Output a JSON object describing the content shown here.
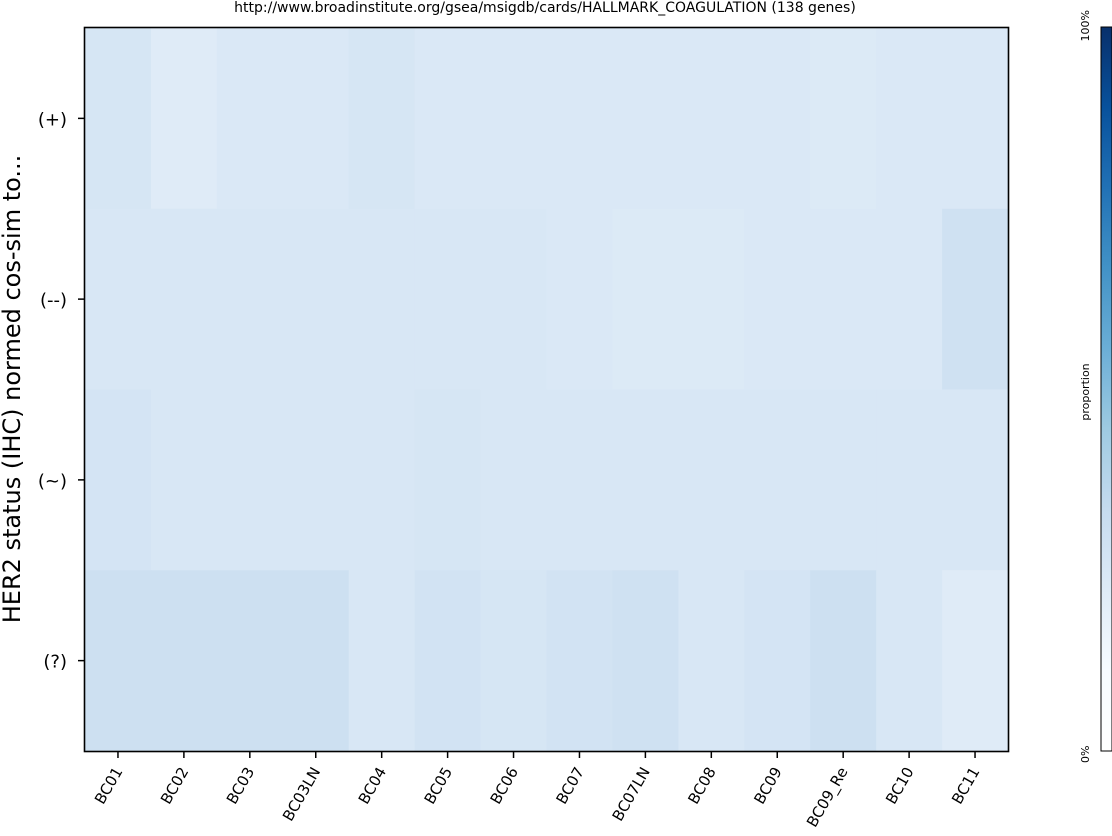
{
  "chart_data": {
    "type": "heatmap",
    "title": "http://www.broadinstitute.org/gsea/msigdb/cards/HALLMARK_COAGULATION (138 genes)",
    "ylabel": "HER2 status (IHC) normed cos-sim to...",
    "xlabel": "",
    "x_categories": [
      "BC01",
      "BC02",
      "BC03",
      "BC03LN",
      "BC04",
      "BC05",
      "BC06",
      "BC07",
      "BC07LN",
      "BC08",
      "BC09",
      "BC09_Re",
      "BC10",
      "BC11"
    ],
    "y_categories": [
      "(+)",
      "(--)",
      "(~)",
      "(?)"
    ],
    "values": [
      [
        0.26,
        0.22,
        0.24,
        0.24,
        0.26,
        0.24,
        0.24,
        0.24,
        0.24,
        0.24,
        0.24,
        0.23,
        0.24,
        0.24
      ],
      [
        0.25,
        0.25,
        0.25,
        0.25,
        0.25,
        0.25,
        0.25,
        0.24,
        0.23,
        0.23,
        0.24,
        0.24,
        0.24,
        0.29
      ],
      [
        0.27,
        0.25,
        0.25,
        0.25,
        0.25,
        0.26,
        0.25,
        0.25,
        0.25,
        0.25,
        0.25,
        0.25,
        0.25,
        0.25
      ],
      [
        0.3,
        0.3,
        0.3,
        0.3,
        0.25,
        0.28,
        0.26,
        0.28,
        0.29,
        0.25,
        0.27,
        0.3,
        0.25,
        0.22
      ]
    ],
    "colorbar": {
      "label": "proportion",
      "min_label": "0%",
      "max_label": "100%",
      "colors": [
        "#ffffff",
        "#f7fbff",
        "#deebf7",
        "#c6dbef",
        "#9ecae1",
        "#6baed6",
        "#4292c6",
        "#2171b5",
        "#08519c",
        "#08306b"
      ]
    }
  }
}
